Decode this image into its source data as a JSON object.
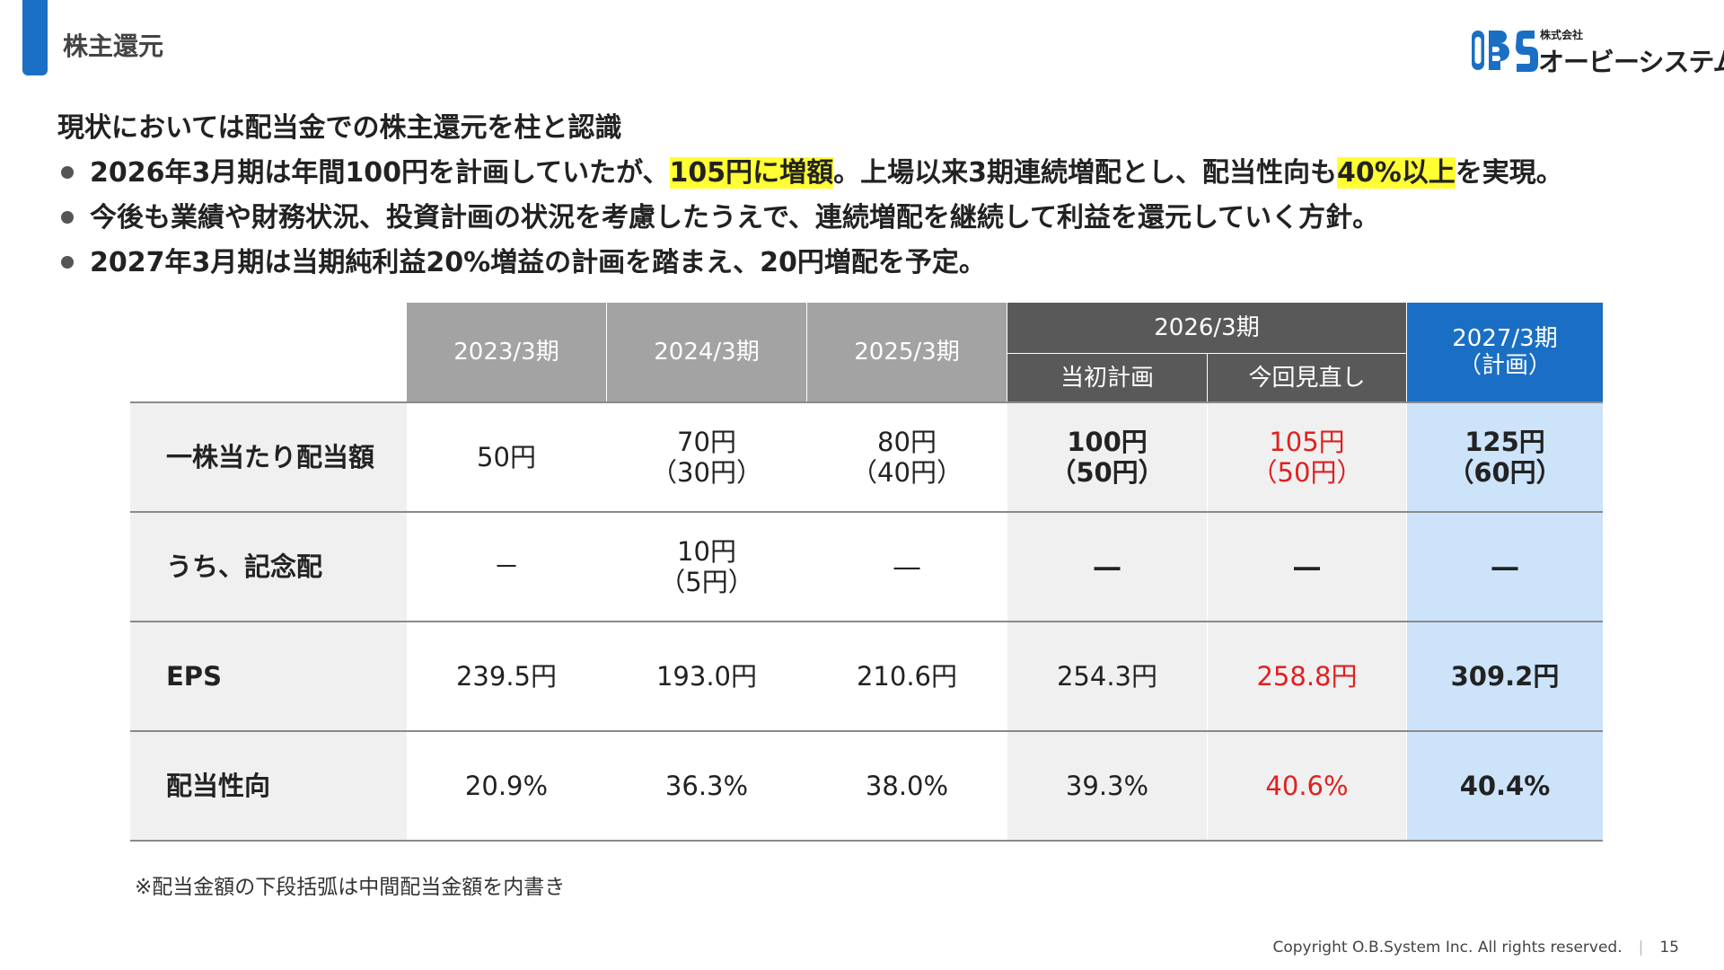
{
  "header": {
    "title": "株主還元",
    "logo": {
      "company_small": "株式会社",
      "company_name": "オービーシステム",
      "mark": "OBS",
      "brand_color": "#1a6fc4"
    }
  },
  "bullets": {
    "heading": "現状においては配当金での株主還元を柱と認識",
    "items": [
      {
        "parts": [
          {
            "text": "2026年3月期は年間100円を計画していたが、",
            "hl": false
          },
          {
            "text": "105円に増額",
            "hl": true
          },
          {
            "text": "。上場以来3期連続増配とし、配当性向も",
            "hl": false
          },
          {
            "text": "40%以上",
            "hl": true
          },
          {
            "text": "を実現。",
            "hl": false
          }
        ]
      },
      {
        "parts": [
          {
            "text": "今後も業績や財務状況、投資計画の状況を考慮したうえで、連続増配を継続して利益を還元していく方針。",
            "hl": false
          }
        ]
      },
      {
        "parts": [
          {
            "text": "2027年3月期は当期純利益20%増益の計画を踏まえ、20円増配を予定。",
            "hl": false
          }
        ]
      }
    ]
  },
  "table": {
    "headers": {
      "col1": "2023/3期",
      "col2": "2024/3期",
      "col3": "2025/3期",
      "group": "2026/3期",
      "group_sub1": "当初計画",
      "group_sub2": "今回見直し",
      "col6_line1": "2027/3期",
      "col6_line2": "（計画）"
    },
    "rows": [
      {
        "label": "一株当たり配当額",
        "values": [
          [
            "50円"
          ],
          [
            "70円",
            "（30円）"
          ],
          [
            "80円",
            "（40円）"
          ],
          [
            "100円",
            "（50円）"
          ],
          [
            "105円",
            "（50円）"
          ],
          [
            "125円",
            "（60円）"
          ]
        ]
      },
      {
        "label": "うち、記念配",
        "values": [
          [
            "－"
          ],
          [
            "10円",
            "（5円）"
          ],
          [
            "―"
          ],
          [
            "―"
          ],
          [
            "―"
          ],
          [
            "―"
          ]
        ]
      },
      {
        "label": "EPS",
        "values": [
          [
            "239.5円"
          ],
          [
            "193.0円"
          ],
          [
            "210.6円"
          ],
          [
            "254.3円"
          ],
          [
            "258.8円"
          ],
          [
            "309.2円"
          ]
        ]
      },
      {
        "label": "配当性向",
        "values": [
          [
            "20.9%"
          ],
          [
            "36.3%"
          ],
          [
            "38.0%"
          ],
          [
            "39.3%"
          ],
          [
            "40.6%"
          ],
          [
            "40.4%"
          ]
        ]
      }
    ],
    "colors": {
      "header_grey": "#a3a3a3",
      "header_dark": "#595959",
      "header_blue": "#1a6fc4",
      "highlight_blue": "#cce3fa",
      "revised_red": "#e02020"
    }
  },
  "footnote": "※配当金額の下段括弧は中間配当金額を内書き",
  "footer": {
    "copyright": "Copyright O.B.System Inc. All rights reserved.",
    "page_number": "15"
  }
}
